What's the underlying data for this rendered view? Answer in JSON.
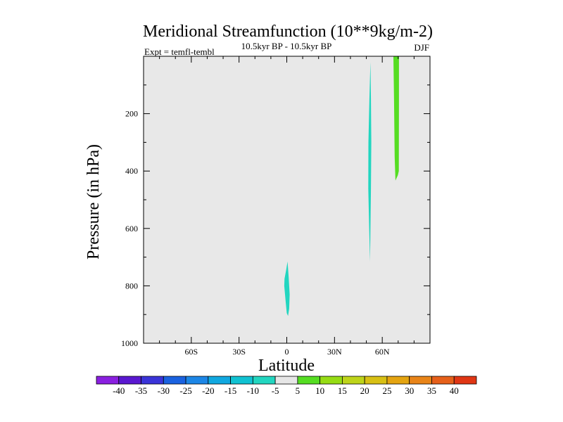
{
  "chart_data": {
    "type": "contour",
    "title": "Meridional Streamfunction (10**9kg/m-2)",
    "subtitle_left": "Expt = temfl-tembl",
    "subtitle_center": "10.5kyr BP - 10.5kyr BP",
    "subtitle_right": "DJF",
    "xlabel": "Latitude",
    "ylabel": "Pressure (in hPa)",
    "xlim": [
      -90,
      90
    ],
    "ylim": [
      1000,
      0
    ],
    "x_ticks": [
      {
        "value": -60,
        "label": "60S"
      },
      {
        "value": -30,
        "label": "30S"
      },
      {
        "value": 0,
        "label": "0"
      },
      {
        "value": 30,
        "label": "30N"
      },
      {
        "value": 60,
        "label": "60N"
      }
    ],
    "y_ticks": [
      {
        "value": 200,
        "label": "200"
      },
      {
        "value": 400,
        "label": "400"
      },
      {
        "value": 600,
        "label": "600"
      },
      {
        "value": 800,
        "label": "800"
      },
      {
        "value": 1000,
        "label": "1000"
      }
    ],
    "background_color": "#e8e8e8",
    "filled_regions": [
      {
        "name": "near-equator-anomaly",
        "range": "-10 to -5",
        "color": "#22d6c0",
        "outline": [
          [
            0.5,
            715
          ],
          [
            1.2,
            770
          ],
          [
            1.8,
            830
          ],
          [
            1.5,
            880
          ],
          [
            0.8,
            905
          ],
          [
            0,
            895
          ],
          [
            -0.6,
            860
          ],
          [
            -1.6,
            800
          ],
          [
            -1.4,
            775
          ],
          [
            -0.4,
            745
          ]
        ]
      },
      {
        "name": "midlatitude-anomaly",
        "range": "-10 to -5",
        "color": "#22d6c0",
        "outline": [
          [
            52.6,
            20
          ],
          [
            52.9,
            150
          ],
          [
            53.1,
            300
          ],
          [
            52.9,
            460
          ],
          [
            52.6,
            600
          ],
          [
            52.3,
            715
          ],
          [
            51.8,
            600
          ],
          [
            51.2,
            460
          ],
          [
            51.3,
            300
          ],
          [
            51.9,
            150
          ],
          [
            52.3,
            70
          ]
        ]
      },
      {
        "name": "high-latitude-anomaly",
        "range": "5 to 10",
        "color": "#55dd22",
        "outline": [
          [
            67.0,
            0
          ],
          [
            70.5,
            0
          ],
          [
            70.5,
            150
          ],
          [
            70.4,
            400
          ],
          [
            69.8,
            415
          ],
          [
            68.3,
            433
          ],
          [
            67.8,
            350
          ],
          [
            67.4,
            150
          ]
        ]
      }
    ],
    "colorbar": {
      "labels": [
        "-40",
        "-35",
        "-30",
        "-25",
        "-20",
        "-15",
        "-10",
        "-5",
        "5",
        "10",
        "15",
        "20",
        "25",
        "30",
        "35",
        "40"
      ],
      "colors": [
        "#8a1fe0",
        "#5a18d0",
        "#3a34d8",
        "#1a62e0",
        "#1c86e6",
        "#10a8e0",
        "#10c2d2",
        "#22d6c0",
        "#e6e6e6",
        "#55dd22",
        "#96dc14",
        "#bed41a",
        "#d8c014",
        "#e4a410",
        "#e88418",
        "#e6601a",
        "#e03614"
      ]
    }
  }
}
